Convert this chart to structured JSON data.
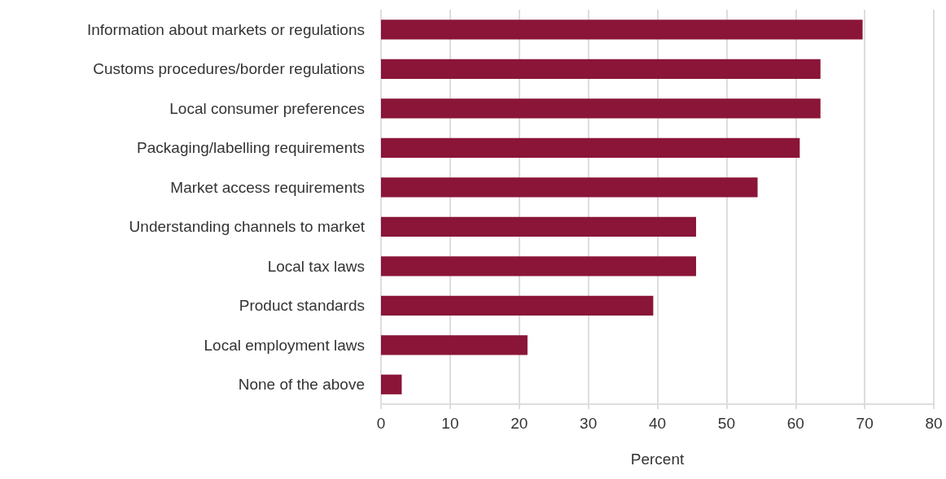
{
  "chart_data": {
    "type": "bar",
    "orientation": "horizontal",
    "xlabel": "Percent",
    "categories": [
      "Information about markets or regulations",
      "Customs procedures/border regulations",
      "Local consumer preferences",
      "Packaging/labelling requirements",
      "Market access requirements",
      "Understanding channels to market",
      "Local tax laws",
      "Product standards",
      "Local employment laws",
      "None of the above"
    ],
    "values": [
      69.7,
      63.6,
      63.6,
      60.6,
      54.5,
      45.6,
      45.6,
      39.4,
      21.2,
      3.0
    ],
    "color": "#8a1538",
    "xlim": [
      0,
      80
    ],
    "xticks": [
      0,
      10,
      20,
      30,
      40,
      50,
      60,
      70,
      80
    ],
    "grid": "x"
  }
}
